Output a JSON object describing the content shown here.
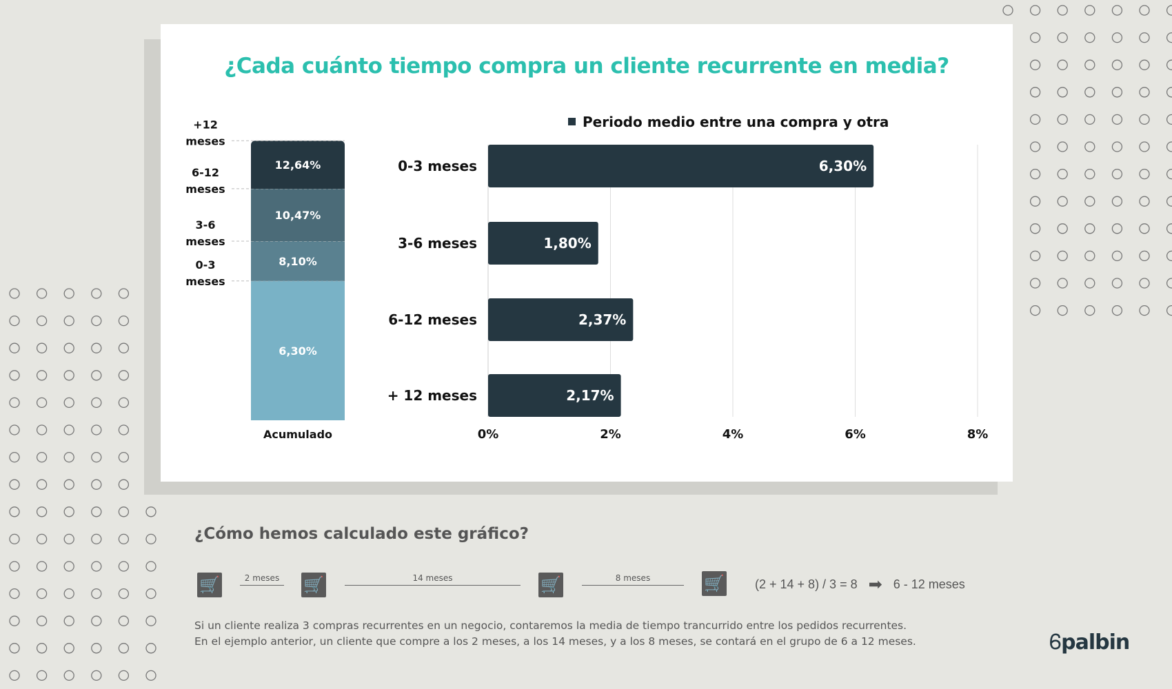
{
  "title": "¿Cada cuánto tiempo compra un cliente recurrente en media?",
  "colors": {
    "title": "#2bbfae",
    "bar": "#253741",
    "stack": [
      "#79b2c6",
      "#5a8190",
      "#4b6b78",
      "#253741"
    ]
  },
  "chart_data": [
    {
      "type": "bar",
      "stacked": true,
      "categories": [
        "Acumulado"
      ],
      "series": [
        {
          "name": "0-3 meses",
          "value": 6.3,
          "label": "6,30%"
        },
        {
          "name": "3-6 meses",
          "value": 1.8,
          "label": "8,10%"
        },
        {
          "name": "6-12 meses",
          "value": 2.37,
          "label": "10,47%"
        },
        {
          "name": "+12 meses",
          "value": 2.17,
          "label": "12,64%"
        }
      ],
      "side_labels": [
        [
          "0-3",
          "meses"
        ],
        [
          "3-6",
          "meses"
        ],
        [
          "6-12",
          "meses"
        ],
        [
          "+12",
          "meses"
        ]
      ],
      "xlabel": "Acumulado"
    },
    {
      "type": "bar",
      "orientation": "horizontal",
      "legend": "Periodo medio entre una compra y otra",
      "legend_position": "top",
      "categories": [
        "0-3 meses",
        "3-6 meses",
        "6-12 meses",
        "+ 12 meses"
      ],
      "values": [
        6.3,
        1.8,
        2.37,
        2.17
      ],
      "data_labels": [
        "6,30%",
        "1,80%",
        "2,37%",
        "2,17%"
      ],
      "xlim": [
        0,
        8
      ],
      "xticks": [
        "0%",
        "2%",
        "4%",
        "6%",
        "8%"
      ],
      "grid": true
    }
  ],
  "explanation": {
    "heading": "¿Cómo hemos calculado este gráfico?",
    "steps": [
      "2 meses",
      "14 meses",
      "8 meses"
    ],
    "formula": "(2 + 14 + 8) / 3 = 8",
    "result": "6 - 12 meses",
    "lines": [
      "Si un cliente realiza 3 compras recurrentes en un negocio, contaremos la media de tiempo trancurrido entre los pedidos recurrentes.",
      "En el ejemplo anterior, un cliente que compre a los 2 meses, a los 14 meses, y a los 8 meses, se contará en el grupo de 6 a 12 meses."
    ]
  },
  "logo": "palbin"
}
